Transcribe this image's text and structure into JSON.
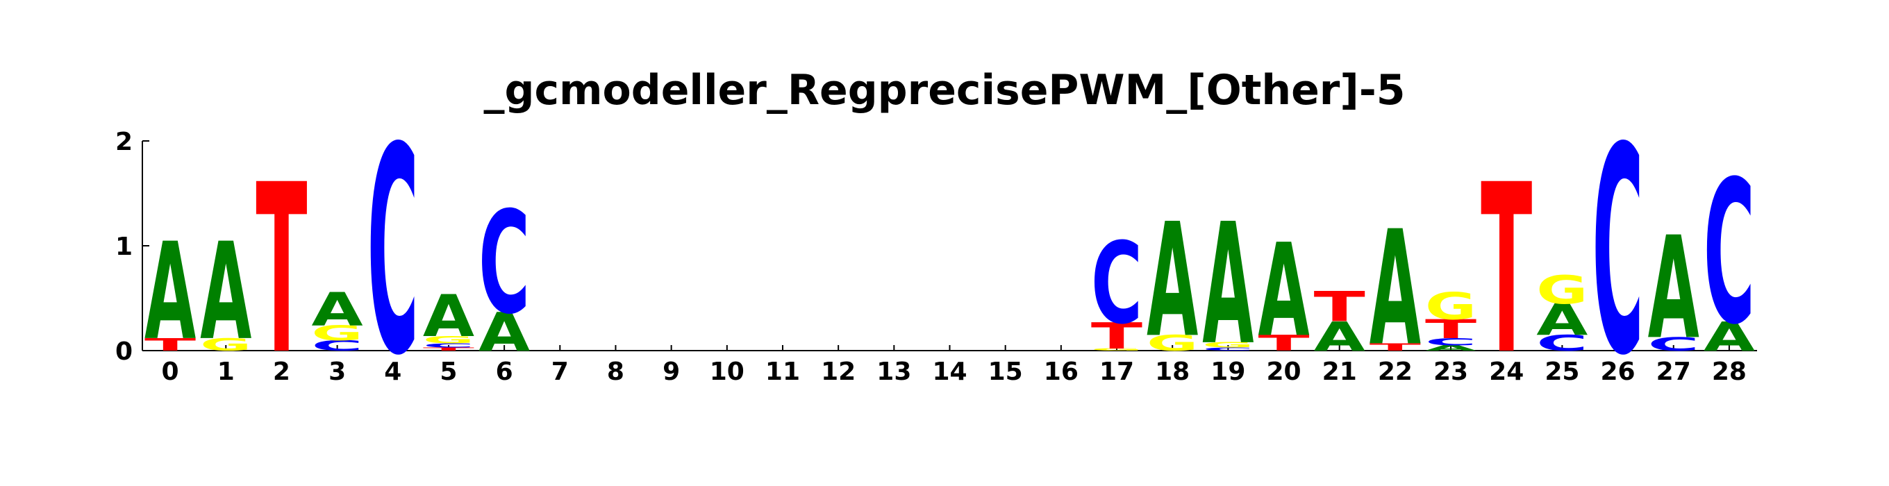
{
  "chart_data": {
    "type": "sequence-logo",
    "title": "_gcmodeller_RegprecisePWM_[Other]-5",
    "xlabel": "",
    "ylabel": "",
    "ylim": [
      0,
      2
    ],
    "y_ticks": [
      "0",
      "1",
      "2"
    ],
    "x_ticks": [
      "0",
      "1",
      "2",
      "3",
      "4",
      "5",
      "6",
      "7",
      "8",
      "9",
      "10",
      "11",
      "12",
      "13",
      "14",
      "15",
      "16",
      "17",
      "18",
      "19",
      "20",
      "21",
      "22",
      "23",
      "24",
      "25",
      "26",
      "27",
      "28"
    ],
    "colors": {
      "A": "#008000",
      "C": "#0000ff",
      "G": "#ffff00",
      "T": "#ff0000"
    },
    "positions": [
      [
        [
          "T",
          0.12
        ],
        [
          "A",
          0.93
        ]
      ],
      [
        [
          "G",
          0.12
        ],
        [
          "A",
          0.93
        ]
      ],
      [
        [
          "T",
          1.62
        ]
      ],
      [
        [
          "C",
          0.1
        ],
        [
          "G",
          0.14
        ],
        [
          "A",
          0.32
        ]
      ],
      [
        [
          "C",
          1.98
        ]
      ],
      [
        [
          "T",
          0.03
        ],
        [
          "C",
          0.04
        ],
        [
          "G",
          0.07
        ],
        [
          "A",
          0.4
        ]
      ],
      [
        [
          "A",
          0.37
        ],
        [
          "C",
          0.98
        ]
      ],
      [],
      [],
      [],
      [],
      [],
      [],
      [],
      [],
      [],
      [],
      [
        [
          "G",
          0.02
        ],
        [
          "T",
          0.25
        ],
        [
          "C",
          0.78
        ]
      ],
      [
        [
          "G",
          0.15
        ],
        [
          "A",
          1.09
        ]
      ],
      [
        [
          "C",
          0.03
        ],
        [
          "G",
          0.05
        ],
        [
          "A",
          1.16
        ]
      ],
      [
        [
          "T",
          0.15
        ],
        [
          "A",
          0.89
        ]
      ],
      [
        [
          "A",
          0.28
        ],
        [
          "T",
          0.29
        ]
      ],
      [
        [
          "T",
          0.07
        ],
        [
          "A",
          1.1
        ]
      ],
      [
        [
          "A",
          0.05
        ],
        [
          "C",
          0.07
        ],
        [
          "T",
          0.18
        ],
        [
          "G",
          0.26
        ]
      ],
      [
        [
          "T",
          1.62
        ]
      ],
      [
        [
          "C",
          0.15
        ],
        [
          "A",
          0.3
        ],
        [
          "G",
          0.27
        ]
      ],
      [
        [
          "C",
          1.98
        ]
      ],
      [
        [
          "C",
          0.13
        ],
        [
          "A",
          0.98
        ]
      ],
      [
        [
          "A",
          0.28
        ],
        [
          "C",
          1.37
        ]
      ]
    ]
  }
}
